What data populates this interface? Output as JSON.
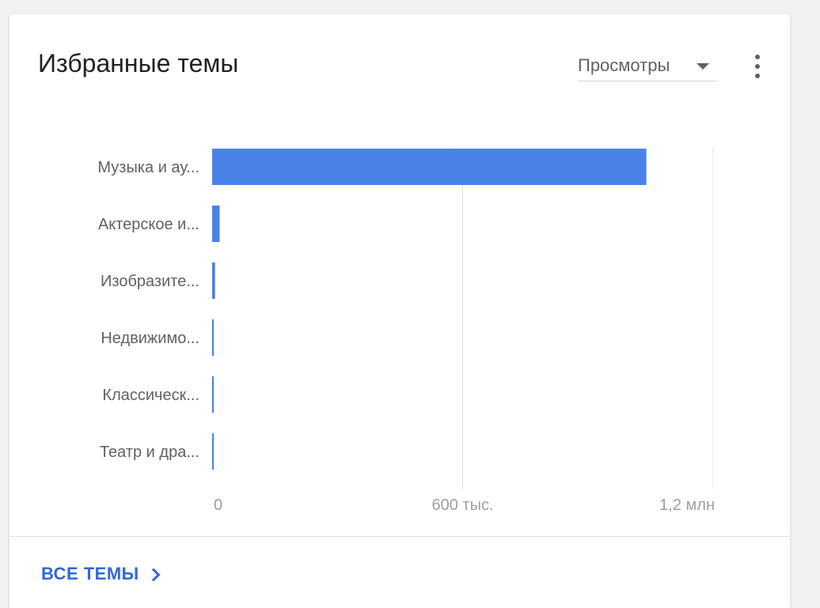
{
  "card": {
    "title": "Избранные темы",
    "metric_select": {
      "selected": "Просмотры"
    },
    "more_icon": "more-vert-icon",
    "footer_link": {
      "label": "ВСЕ ТЕМЫ",
      "icon": "chevron-right-icon"
    }
  },
  "chart_data": {
    "type": "bar",
    "orientation": "horizontal",
    "categories": [
      "Музыка и ау...",
      "Актерское и...",
      "Изобразите...",
      "Недвижимо...",
      "Классическ...",
      "Театр и дра..."
    ],
    "values": [
      1040000,
      18000,
      7000,
      4000,
      4000,
      4000
    ],
    "xlim": [
      0,
      1200000
    ],
    "xticks": [
      0,
      600000,
      1200000
    ],
    "xtick_labels": [
      "0",
      "600 тыс.",
      "1,2 млн"
    ],
    "grid": "vertical",
    "bar_color": "#4a82e8",
    "grid_color": "#e0e0e0"
  }
}
